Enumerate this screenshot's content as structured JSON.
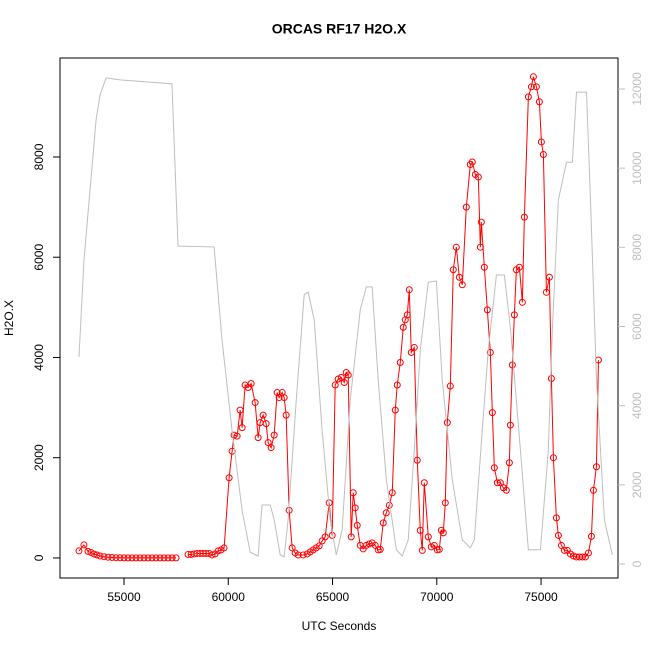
{
  "chart_data": {
    "type": "line",
    "title": "ORCAS RF17 H2O.X",
    "x_label": "UTC Seconds",
    "y_label": "H2O.X",
    "xlim": [
      51930,
      78690
    ],
    "xticks": [
      55000,
      60000,
      65000,
      70000,
      75000
    ],
    "ylim": [
      -400,
      9975
    ],
    "yticks": [
      0,
      2000,
      4000,
      6000,
      8000
    ],
    "y2lim": [
      -354,
      12783
    ],
    "y2ticks": [
      0,
      2000,
      4000,
      6000,
      8000,
      10000,
      12000
    ],
    "y2_color": "#bebebe",
    "series": [
      {
        "color": "#ff0000",
        "marker": "circle",
        "x": [
          52840,
          53080,
          53272,
          53416,
          53560,
          53704,
          53848,
          54040,
          54232,
          54424,
          54616,
          54808,
          55000,
          55192,
          55384,
          55576,
          55768,
          55960,
          56152,
          56344,
          56536,
          56728,
          56920,
          57112,
          57304,
          57496,
          57800,
          58072,
          58216,
          58360,
          58504,
          58648,
          58792,
          58936,
          59080,
          59224,
          59368,
          59512,
          59656,
          59800,
          60040,
          60184,
          60280,
          60424,
          60568,
          60664,
          60808,
          60952,
          61096,
          61288,
          61432,
          61528,
          61672,
          61816,
          61912,
          62056,
          62200,
          62344,
          62440,
          62584,
          62680,
          62776,
          62920,
          63064,
          63208,
          63352,
          63592,
          63784,
          63928,
          64072,
          64216,
          64360,
          64504,
          64648,
          64840,
          64984,
          65128,
          65272,
          65416,
          65560,
          65656,
          65752,
          65896,
          65992,
          66088,
          66184,
          66328,
          66472,
          66616,
          66760,
          66904,
          67048,
          67192,
          67288,
          67432,
          67576,
          67720,
          67864,
          68008,
          68104,
          68248,
          68392,
          68488,
          68584,
          68680,
          68776,
          68920,
          69064,
          69208,
          69304,
          69400,
          69592,
          69736,
          69880,
          70024,
          70120,
          70216,
          70312,
          70408,
          70504,
          70648,
          70792,
          70936,
          71080,
          71224,
          71416,
          71608,
          71704,
          71848,
          71992,
          72088,
          72136,
          72280,
          72424,
          72568,
          72664,
          72760,
          72904,
          73048,
          73192,
          73336,
          73480,
          73528,
          73624,
          73720,
          73816,
          73960,
          74104,
          74200,
          74392,
          74536,
          74632,
          74776,
          74920,
          75016,
          75112,
          75256,
          75400,
          75496,
          75592,
          75736,
          75832,
          75976,
          76120,
          76264,
          76408,
          76552,
          76696,
          76840,
          76984,
          77128,
          77272,
          77416,
          77512,
          77656,
          77752
        ],
        "values": [
          140,
          260,
          130,
          110,
          80,
          60,
          40,
          25,
          15,
          10,
          5,
          3,
          2,
          2,
          2,
          2,
          2,
          2,
          2,
          2,
          2,
          2,
          2,
          2,
          2,
          2,
          null,
          70,
          70,
          80,
          90,
          90,
          90,
          90,
          90,
          60,
          80,
          140,
          160,
          200,
          1600,
          2130,
          2450,
          2430,
          2950,
          2600,
          3450,
          3400,
          3480,
          3100,
          2400,
          2700,
          2850,
          2680,
          2300,
          2200,
          2450,
          3300,
          3200,
          3300,
          3200,
          2850,
          950,
          200,
          100,
          60,
          60,
          80,
          120,
          160,
          200,
          240,
          340,
          420,
          1100,
          450,
          3450,
          3570,
          3600,
          3500,
          3700,
          3650,
          420,
          1300,
          1000,
          650,
          250,
          180,
          250,
          280,
          300,
          250,
          160,
          170,
          700,
          900,
          1050,
          1300,
          2950,
          3450,
          3900,
          4600,
          4750,
          4850,
          5350,
          4100,
          4200,
          1950,
          550,
          150,
          1500,
          420,
          220,
          250,
          160,
          170,
          550,
          500,
          1100,
          2700,
          3430,
          5750,
          6200,
          5600,
          5450,
          7000,
          7850,
          7900,
          7650,
          7600,
          6200,
          6700,
          5800,
          4950,
          4100,
          2900,
          1800,
          1500,
          1500,
          1400,
          1350,
          1900,
          2650,
          3850,
          4850,
          5750,
          5800,
          5100,
          6800,
          9200,
          9400,
          9600,
          9400,
          9100,
          8300,
          8050,
          5300,
          5600,
          3580,
          2000,
          800,
          450,
          250,
          150,
          150,
          80,
          40,
          20,
          20,
          20,
          20,
          100,
          430,
          1350,
          1820,
          3950
        ]
      },
      {
        "color": "#bebebe",
        "axis": "y2",
        "x": [
          52840,
          53080,
          53370,
          53660,
          53850,
          54140,
          54810,
          57300,
          57590,
          59320,
          59700,
          60180,
          60660,
          61050,
          61430,
          61620,
          62010,
          62200,
          62490,
          62680,
          62870,
          63260,
          63640,
          63830,
          64120,
          64500,
          64890,
          65180,
          65460,
          65850,
          66330,
          66620,
          66900,
          67190,
          67580,
          68060,
          68340,
          68630,
          68920,
          69210,
          69590,
          69980,
          70260,
          70740,
          71220,
          71610,
          71800,
          72180,
          72470,
          72860,
          73240,
          73540,
          74010,
          74390,
          74970,
          75350,
          75540,
          75830,
          76220,
          76500,
          76700,
          77180,
          77370,
          77660,
          78040,
          78420
        ],
        "values": [
          5230,
          7680,
          9450,
          11220,
          11850,
          12280,
          12230,
          12130,
          8030,
          8010,
          5660,
          3380,
          1360,
          300,
          200,
          1490,
          1490,
          1120,
          230,
          180,
          1120,
          4140,
          6800,
          6870,
          6170,
          3380,
          1120,
          230,
          860,
          4140,
          6420,
          7000,
          7000,
          4650,
          2130,
          360,
          200,
          610,
          2880,
          5410,
          7120,
          7150,
          4650,
          2130,
          610,
          410,
          610,
          3380,
          5410,
          7300,
          7300,
          5910,
          2880,
          360,
          360,
          2880,
          5910,
          9200,
          10150,
          10150,
          11920,
          11920,
          9200,
          4650,
          1110,
          230
        ]
      }
    ]
  }
}
